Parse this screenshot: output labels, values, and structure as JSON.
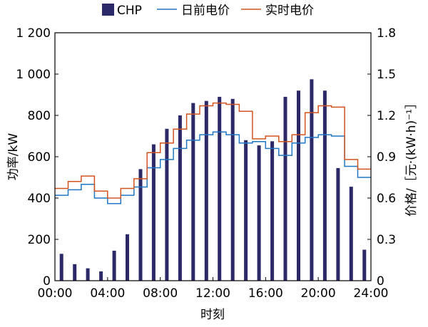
{
  "chart_data": {
    "type": "bar+line",
    "xlabel": "时刻",
    "ylabel_left": "功率/kW",
    "ylabel_right": "价格/［元·(kW·h)⁻¹］",
    "x_ticks": [
      "00:00",
      "04:00",
      "08:00",
      "12:00",
      "16:00",
      "20:00",
      "24:00"
    ],
    "y_left_ticks": [
      "0",
      "200",
      "400",
      "600",
      "800",
      "1 000",
      "1 200"
    ],
    "y_right_ticks": [
      "0",
      "0.3",
      "0.6",
      "0.9",
      "1.2",
      "1.5",
      "1.8"
    ],
    "ylim_left": [
      0,
      1200
    ],
    "ylim_right": [
      0,
      1.8
    ],
    "xlim": [
      0,
      24
    ],
    "colors": {
      "chp": "#2b2968",
      "day_ahead": "#1f77c4",
      "real_time": "#d2531e"
    },
    "legend": [
      {
        "key": "chp",
        "label": "CHP",
        "kind": "bar"
      },
      {
        "key": "day_ahead",
        "label": "日前电价",
        "kind": "line"
      },
      {
        "key": "real_time",
        "label": "实时电价",
        "kind": "line"
      }
    ],
    "chp": {
      "hours": [
        0.5,
        1.5,
        2.5,
        3.5,
        4.5,
        5.5,
        6.5,
        7.5,
        8.5,
        9.5,
        10.5,
        11.5,
        12.5,
        13.5,
        14.5,
        15.5,
        16.5,
        17.5,
        18.5,
        19.5,
        20.5,
        21.5,
        22.5,
        23.5
      ],
      "values": [
        130,
        80,
        60,
        45,
        145,
        225,
        540,
        660,
        735,
        800,
        860,
        870,
        890,
        880,
        680,
        655,
        675,
        890,
        920,
        975,
        920,
        545,
        455,
        150
      ]
    },
    "day_ahead_price": {
      "x": [
        0,
        1,
        2,
        3,
        4,
        5,
        6,
        7,
        8,
        9,
        10,
        11,
        12,
        13,
        14,
        15,
        16,
        17,
        18,
        19,
        20,
        21,
        22,
        23
      ],
      "values": [
        0.62,
        0.66,
        0.7,
        0.6,
        0.56,
        0.62,
        0.68,
        0.82,
        0.88,
        0.96,
        1.02,
        1.06,
        1.08,
        1.06,
        1.0,
        1.01,
        0.96,
        0.91,
        1.0,
        1.04,
        1.06,
        1.05,
        0.83,
        0.75
      ],
      "end": 24
    },
    "real_time_price": {
      "x": [
        0,
        1,
        2,
        3,
        4,
        5,
        6,
        7,
        8,
        9,
        10,
        11,
        12,
        13,
        14,
        15,
        16,
        17,
        18,
        19,
        20,
        21,
        22,
        23
      ],
      "values": [
        0.67,
        0.72,
        0.76,
        0.65,
        0.6,
        0.67,
        0.74,
        0.93,
        1.0,
        1.1,
        1.21,
        1.27,
        1.29,
        1.28,
        1.23,
        1.03,
        1.05,
        1.01,
        1.06,
        1.22,
        1.27,
        1.26,
        0.88,
        0.81
      ],
      "end": 24
    }
  }
}
